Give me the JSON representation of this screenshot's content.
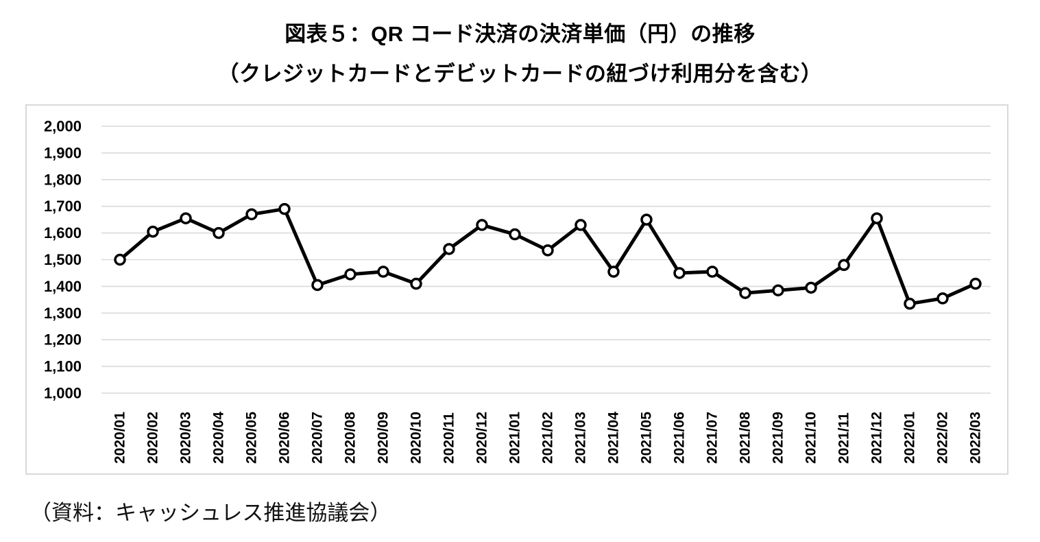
{
  "header": {
    "title": "図表５：QR コード決済の決済単価（円）の推移",
    "subtitle": "（クレジットカードとデビットカードの紐づけ利用分を含む）"
  },
  "footer": {
    "source": "（資料：キャッシュレス推進協議会）"
  },
  "chart_data": {
    "type": "line",
    "title": "図表５：QR コード決済の決済単価（円）の推移",
    "subtitle": "（クレジットカードとデビットカードの紐づけ利用分を含む）",
    "xlabel": "",
    "ylabel": "",
    "ylim": [
      1000,
      2000
    ],
    "ytick_step": 100,
    "ytick_labels": [
      "2,000",
      "1,900",
      "1,800",
      "1,700",
      "1,600",
      "1,500",
      "1,400",
      "1,300",
      "1,200",
      "1,100",
      "1,000"
    ],
    "grid": true,
    "legend_position": "none",
    "categories": [
      "2020/01",
      "2020/02",
      "2020/03",
      "2020/04",
      "2020/05",
      "2020/06",
      "2020/07",
      "2020/08",
      "2020/09",
      "2020/10",
      "2020/11",
      "2020/12",
      "2021/01",
      "2021/02",
      "2021/03",
      "2021/04",
      "2021/05",
      "2021/06",
      "2021/07",
      "2021/08",
      "2021/09",
      "2021/10",
      "2021/11",
      "2021/12",
      "2022/01",
      "2022/02",
      "2022/03"
    ],
    "series": [
      {
        "name": "QRコード決済の決済単価（円）",
        "values": [
          1500,
          1605,
          1655,
          1600,
          1670,
          1690,
          1405,
          1445,
          1455,
          1410,
          1540,
          1630,
          1595,
          1535,
          1630,
          1455,
          1650,
          1450,
          1455,
          1375,
          1385,
          1395,
          1480,
          1655,
          1335,
          1355,
          1410
        ]
      }
    ],
    "colors": {
      "line": "#000000",
      "marker_fill": "#ffffff",
      "marker_stroke": "#000000",
      "grid": "#d9d9d9",
      "frame_border": "#d9d9d9",
      "text": "#000000"
    }
  }
}
